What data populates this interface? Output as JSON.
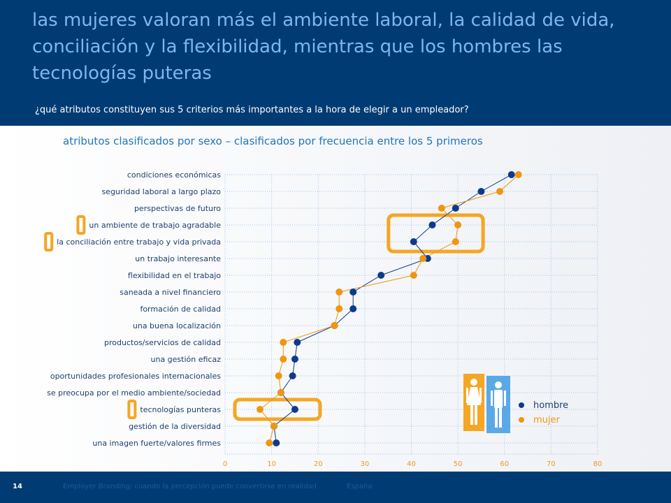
{
  "header": {
    "title": "las mujeres valoran más el ambiente laboral, la calidad de vida, conciliación y la flexibilidad, mientras que los hombres las tecnologías puteras",
    "question": "¿qué atributos constituyen sus 5 criterios más importantes a la hora de elegir a un empleador?"
  },
  "footer": {
    "page_number": "14",
    "text": "Employer Branding: cuando la percepción puede convertirse en realidad",
    "country": "España"
  },
  "colors": {
    "hombre": "#0d3a8c",
    "mujer": "#f0960f",
    "highlight": "#f5a623",
    "male_icon_bg": "#5aa9e6",
    "female_icon_bg": "#f5a623"
  },
  "chart_data": {
    "type": "line",
    "title": "atributos clasificados por sexo – clasificados por frecuencia entre los 5 primeros",
    "xlim": [
      0,
      80
    ],
    "xticks": [
      0,
      10,
      20,
      30,
      40,
      50,
      60,
      70,
      80
    ],
    "grid": true,
    "legend_position": "bottom-right",
    "categories": [
      "condiciones económicas",
      "seguridad laboral a largo plazo",
      "perspectivas de futuro",
      "un ambiente de trabajo agradable",
      "la conciliación entre trabajo y vida privada",
      "un trabajo interesante",
      "flexibilidad en el trabajo",
      "saneada a nivel financiero",
      "formación de calidad",
      "una buena localización",
      "productos/servicios de calidad",
      "una gestión eficaz",
      "oportunidades profesionales internacionales",
      "se preocupa por el medio ambiente/sociedad",
      "tecnologías punteras",
      "gestión de la diversidad",
      "una imagen fuerte/valores firmes"
    ],
    "series": [
      {
        "name": "hombre",
        "values": [
          61.5,
          55,
          49.5,
          44.5,
          40.5,
          43.5,
          33.5,
          27.5,
          27.5,
          23.5,
          15.5,
          15,
          14.5,
          12,
          15,
          10.5,
          11
        ]
      },
      {
        "name": "mujer",
        "values": [
          63,
          59,
          46.5,
          50,
          49.5,
          42.5,
          40.5,
          24.5,
          24.5,
          23.5,
          12.5,
          12.5,
          11.5,
          12,
          7.5,
          10.5,
          9.5
        ]
      }
    ],
    "highlighted_categories": [
      "un ambiente de trabajo agradable",
      "la conciliación entre trabajo y vida privada",
      "tecnologías punteras"
    ]
  }
}
